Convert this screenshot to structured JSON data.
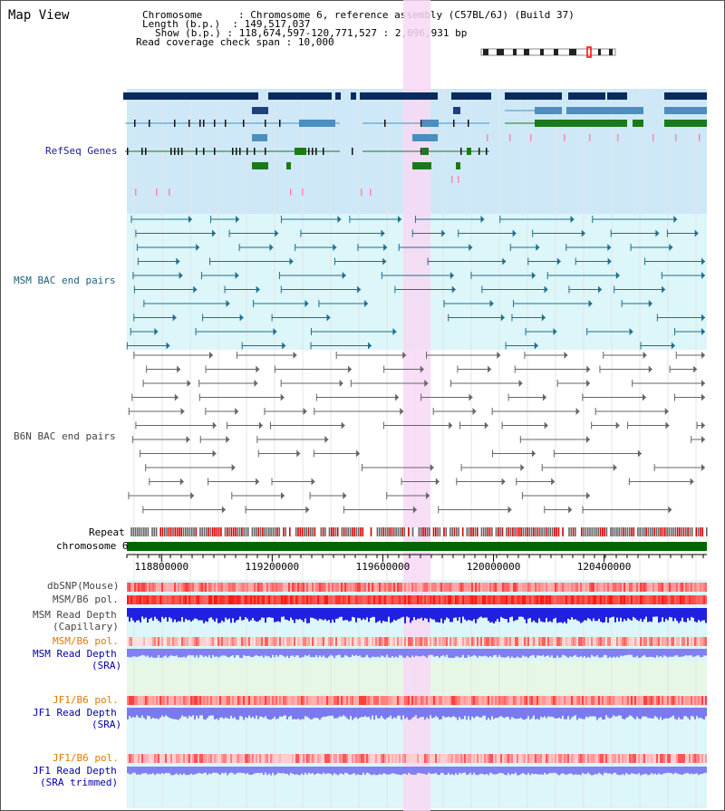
{
  "view_title": "Map View",
  "header": {
    "chromosome_key": "Chromosome",
    "chromosome_value": "Chromosome 6, reference assembly (C57BL/6J) (Build 37)",
    "length_key": "Length (b.p.)",
    "length_value": "149,517,037",
    "show_key": "Show (b.p.)",
    "show_value": "118,674,597-120,771,527 : 2,096,931 bp",
    "coverage_key": "Read coverage check span",
    "coverage_value": "10,000"
  },
  "tracks": {
    "refseq": "RefSeq Genes",
    "msm_bac": "MSM BAC end pairs",
    "b6n_bac": "B6N BAC end pairs",
    "repeat": "Repeat",
    "chromosome": "chromosome 6",
    "dbsnp": "dbSNP(Mouse)",
    "msm_b6_pol_1": "MSM/B6 pol.",
    "msm_depth_cap_1": "MSM Read Depth",
    "msm_depth_cap_2": "(Capillary)",
    "msm_b6_pol_2": "MSM/B6 pol.",
    "msm_depth_sra_1": "MSM Read Depth",
    "msm_depth_sra_2": "(SRA)",
    "jf1_b6_pol_1": "JF1/B6 pol.",
    "jf1_depth_sra_1": "JF1 Read Depth",
    "jf1_depth_sra_2": "(SRA)",
    "jf1_b6_pol_2": "JF1/B6 pol.",
    "jf1_depth_trim_1": "JF1 Read Depth",
    "jf1_depth_trim_2": "(SRA trimmed)"
  },
  "axis_ticks": [
    {
      "label": "118800000",
      "bp": 118800000
    },
    {
      "label": "119200000",
      "bp": 119200000
    },
    {
      "label": "119600000",
      "bp": 119600000
    },
    {
      "label": "120000000",
      "bp": 120000000
    },
    {
      "label": "120400000",
      "bp": 120400000
    }
  ],
  "colors": {
    "refseq_bg": "#cfe8f7",
    "msm_bg": "#dcf6f9",
    "highlight": "#f7d8f4",
    "chromosome": "#006600",
    "gene_dark": "#0a2a5e",
    "gene_mid": "#4a8fbf",
    "gene_green": "#1a7a1a",
    "msm_bac": "#1f6f8f",
    "b6n_bac": "#666666",
    "depth": "#2020e0",
    "depth_light": "#8080f0"
  }
}
